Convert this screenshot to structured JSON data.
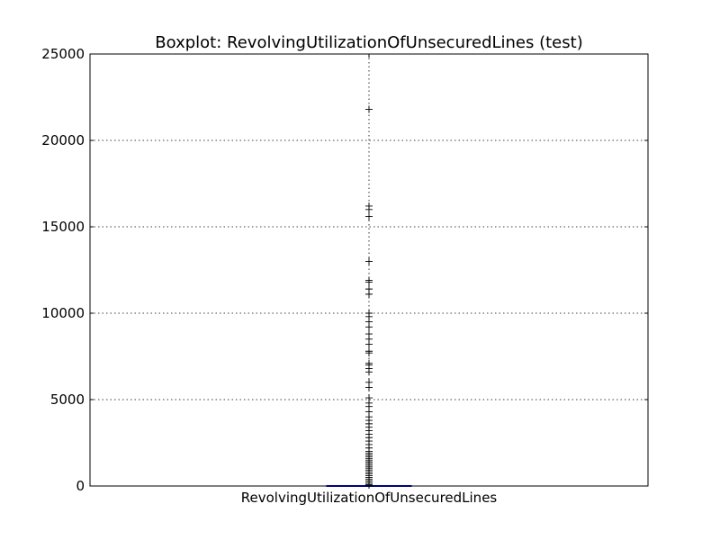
{
  "chart_data": {
    "type": "box",
    "title": "Boxplot: RevolvingUtilizationOfUnsecuredLines (test)",
    "categories": [
      "RevolvingUtilizationOfUnsecuredLines"
    ],
    "xlabel": "",
    "ylabel": "",
    "ylim": [
      0,
      25000
    ],
    "yticks": [
      "0",
      "5000",
      "10000",
      "15000",
      "20000",
      "25000"
    ],
    "grid": true,
    "box": {
      "q1": 0.03,
      "median": 0.15,
      "q3": 0.56,
      "whisker_low": 0,
      "whisker_high": 1.35
    },
    "fliers": [
      21800,
      16200,
      16000,
      15600,
      13000,
      11900,
      11800,
      11400,
      11100,
      10000,
      9800,
      9500,
      9200,
      8800,
      8500,
      8200,
      7800,
      7700,
      7100,
      7000,
      6800,
      6600,
      6000,
      5700,
      5100,
      4800,
      4600,
      4300,
      4000,
      3800,
      3600,
      3400,
      3200,
      3000,
      2800,
      2600,
      2400,
      2200,
      2000,
      1900,
      1800,
      1700,
      1600,
      1500,
      1400,
      1300,
      1200,
      1100,
      1000,
      900,
      800,
      700,
      600,
      500,
      400,
      300,
      200,
      100,
      50
    ]
  }
}
